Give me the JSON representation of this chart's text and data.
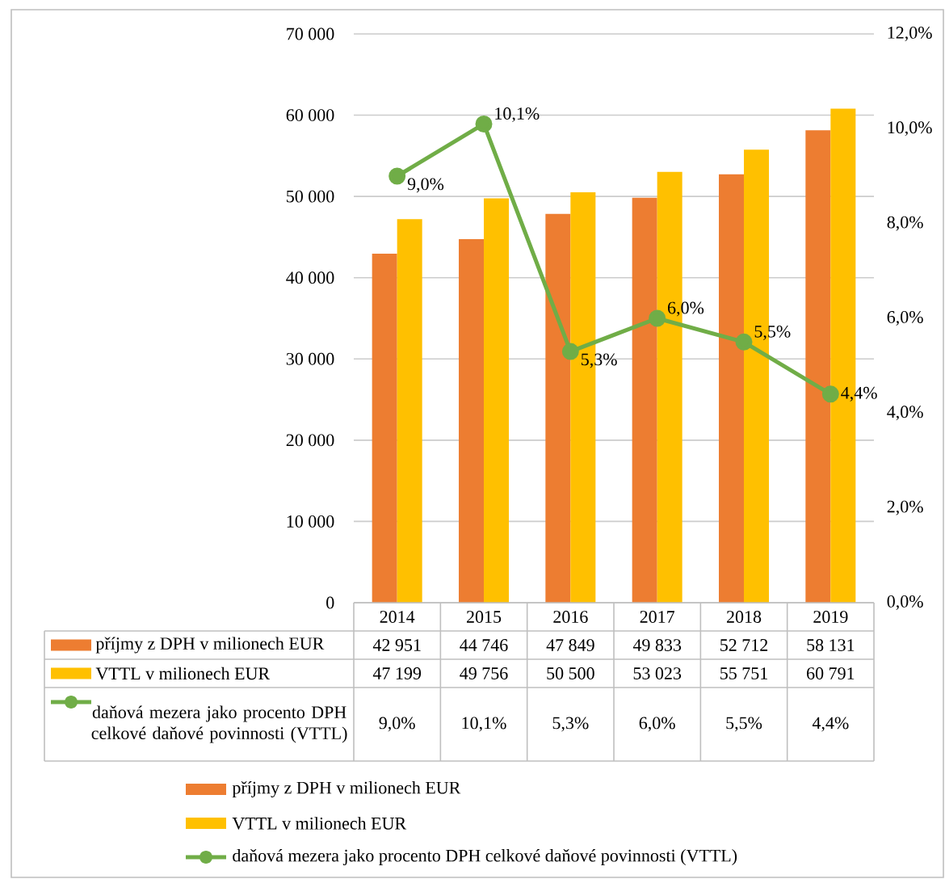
{
  "chart_data": {
    "type": "bar",
    "categories": [
      "2014",
      "2015",
      "2016",
      "2017",
      "2018",
      "2019"
    ],
    "series": [
      {
        "name": "příjmy z DPH v milionech EUR",
        "color": "#ed7d31",
        "values": [
          42951,
          44746,
          47849,
          49833,
          52712,
          58131
        ],
        "value_labels": [
          "42 951",
          "44 746",
          "47 849",
          "49 833",
          "52 712",
          "58 131"
        ]
      },
      {
        "name": "VTTL v milionech EUR",
        "color": "#ffc000",
        "values": [
          47199,
          49756,
          50500,
          53023,
          55751,
          60791
        ],
        "value_labels": [
          "47 199",
          "49 756",
          "50 500",
          "53 023",
          "55 751",
          "60 791"
        ]
      },
      {
        "name": "daňová mezera jako procento DPH celkové daňové povinnosti (VTTL)",
        "type": "line",
        "axis": "y2",
        "marker": "circle",
        "color": "#70ad47",
        "values": [
          9.0,
          10.1,
          5.3,
          6.0,
          5.5,
          4.4
        ],
        "value_labels": [
          "9,0%",
          "10,1%",
          "5,3%",
          "6,0%",
          "5,5%",
          "4,4%"
        ]
      }
    ],
    "ylim": [
      0,
      70000
    ],
    "yticks": [
      0,
      {
        "value": 10000,
        "label": "10 000"
      },
      {
        "value": 20000,
        "label": "20 000"
      },
      {
        "value": 30000,
        "label": "30 000"
      },
      {
        "value": 40000,
        "label": "40 000"
      },
      {
        "value": 50000,
        "label": "50 000"
      },
      {
        "value": 60000,
        "label": "60 000"
      },
      {
        "value": 70000,
        "label": "70 000"
      }
    ],
    "y2lim": [
      0,
      12
    ],
    "y2ticks": [
      {
        "value": 0,
        "label": "0,0%"
      },
      {
        "value": 2,
        "label": "2,0%"
      },
      {
        "value": 4,
        "label": "4,0%"
      },
      {
        "value": 6,
        "label": "6,0%"
      },
      {
        "value": 8,
        "label": "8,0%"
      },
      {
        "value": 10,
        "label": "10,0%"
      },
      {
        "value": 12,
        "label": "12,0%"
      }
    ],
    "grid": "y",
    "legend": "bottom"
  }
}
